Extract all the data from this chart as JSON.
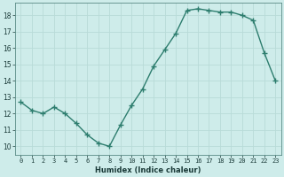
{
  "x": [
    0,
    1,
    2,
    3,
    4,
    5,
    6,
    7,
    8,
    9,
    10,
    11,
    12,
    13,
    14,
    15,
    16,
    17,
    18,
    19,
    20,
    21,
    22,
    23
  ],
  "y": [
    12.7,
    12.2,
    12.0,
    12.4,
    12.0,
    11.4,
    10.7,
    10.2,
    10.0,
    11.3,
    12.5,
    13.5,
    14.9,
    15.9,
    16.9,
    18.3,
    18.4,
    18.3,
    18.2,
    18.2,
    18.0,
    17.7,
    15.7,
    14.0
  ],
  "xlabel": "Humidex (Indice chaleur)",
  "line_color": "#2d7d6e",
  "marker_color": "#2d7d6e",
  "bg_color": "#ceecea",
  "grid_color": "#b8dbd8",
  "xlim": [
    -0.5,
    23.5
  ],
  "ylim": [
    9.5,
    18.75
  ],
  "yticks": [
    10,
    11,
    12,
    13,
    14,
    15,
    16,
    17,
    18
  ],
  "xticks": [
    0,
    1,
    2,
    3,
    4,
    5,
    6,
    7,
    8,
    9,
    10,
    11,
    12,
    13,
    14,
    15,
    16,
    17,
    18,
    19,
    20,
    21,
    22,
    23
  ],
  "xlabel_fontsize": 6.0,
  "tick_fontsize": 5.0,
  "linewidth": 1.0,
  "markersize": 2.2
}
